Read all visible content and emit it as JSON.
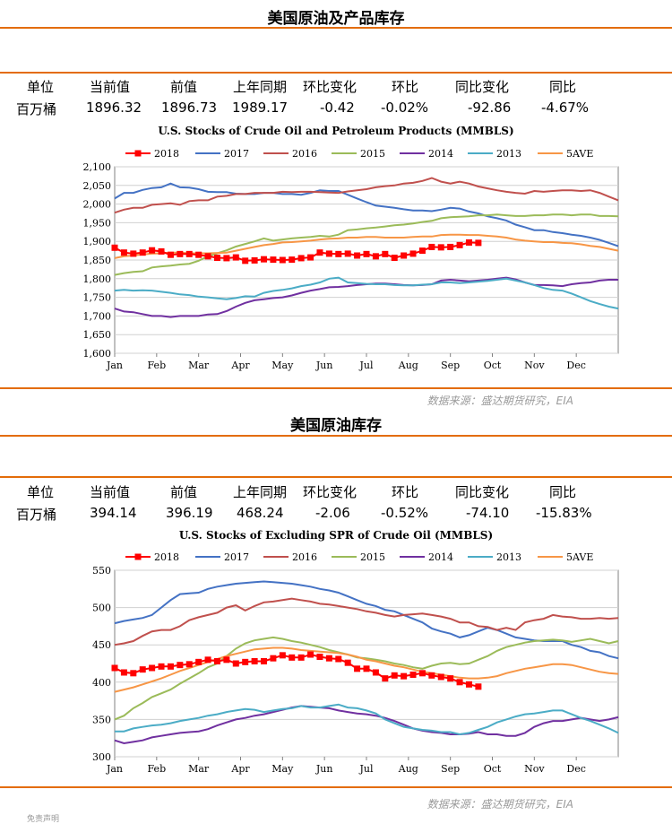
{
  "sections": [
    {
      "title": "美国原油及产品库存",
      "stats": {
        "headers": [
          "单位",
          "当前值",
          "前值",
          "上年同期",
          "环比变化",
          "环比",
          "同比变化",
          "同比"
        ],
        "values": [
          "百万桶",
          "1896.32",
          "1896.73",
          "1989.17",
          "-0.42",
          "-0.02%",
          "-92.86",
          "-4.67%"
        ]
      },
      "source": "数据来源：盛达期货研究，EIA"
    },
    {
      "title": "美国原油库存",
      "stats": {
        "headers": [
          "单位",
          "当前值",
          "前值",
          "上年同期",
          "环比变化",
          "环比",
          "同比变化",
          "同比"
        ],
        "values": [
          "百万桶",
          "394.14",
          "396.19",
          "468.24",
          "-2.06",
          "-0.52%",
          "-74.10",
          "-15.83%"
        ]
      },
      "source": "数据来源：盛达期货研究，EIA"
    }
  ],
  "footer_text": "免责声明",
  "colors": {
    "accent": "#e36c09",
    "s2018": "#ff0000",
    "s2017": "#4472c4",
    "s2016": "#c0504d",
    "s2015": "#9bbb59",
    "s2014": "#7030a0",
    "s2013": "#4bacc6",
    "s5ave": "#f79646"
  },
  "chart_data": [
    {
      "type": "line",
      "title": "U.S.  Stocks of Crude Oil and Petroleum Products  (MMBLS)",
      "ylim": [
        1600,
        2100
      ],
      "yticks": [
        "1,600",
        "1,650",
        "1,700",
        "1,750",
        "1,800",
        "1,850",
        "1,900",
        "1,950",
        "2,000",
        "2,050",
        "2,100"
      ],
      "x_tick_labels": [
        "Jan",
        "Feb",
        "Mar",
        "Apr",
        "May",
        "Jun",
        "Jul",
        "Aug",
        "Sep",
        "Oct",
        "Nov",
        "Dec"
      ],
      "legend": [
        "2018",
        "2017",
        "2016",
        "2015",
        "2014",
        "2013",
        "5AVE"
      ],
      "legend_position": "top",
      "series": [
        {
          "name": "2018",
          "color": "#ff0000",
          "marker": "square",
          "values": [
            1883,
            1870,
            1867,
            1870,
            1876,
            1873,
            1864,
            1866,
            1866,
            1864,
            1860,
            1856,
            1855,
            1857,
            1848,
            1849,
            1852,
            1851,
            1850,
            1851,
            1855,
            1857,
            1870,
            1867,
            1866,
            1867,
            1862,
            1866,
            1860,
            1866,
            1856,
            1862,
            1867,
            1875,
            1885,
            1884,
            1885,
            1890,
            1897,
            1896
          ]
        },
        {
          "name": "2017",
          "color": "#4472c4",
          "values": [
            2015,
            2030,
            2030,
            2038,
            2043,
            2045,
            2055,
            2045,
            2044,
            2040,
            2033,
            2032,
            2032,
            2028,
            2027,
            2027,
            2030,
            2030,
            2027,
            2027,
            2025,
            2030,
            2037,
            2035,
            2035,
            2025,
            2015,
            2005,
            1996,
            1993,
            1990,
            1986,
            1983,
            1983,
            1981,
            1985,
            1990,
            1988,
            1980,
            1975,
            1967,
            1962,
            1956,
            1945,
            1938,
            1930,
            1930,
            1925,
            1922,
            1918,
            1915,
            1910,
            1904,
            1896,
            1887
          ]
        },
        {
          "name": "2016",
          "color": "#c0504d",
          "values": [
            1977,
            1985,
            1990,
            1990,
            1998,
            2000,
            2002,
            1998,
            2008,
            2010,
            2010,
            2020,
            2022,
            2027,
            2027,
            2030,
            2030,
            2030,
            2033,
            2032,
            2033,
            2033,
            2032,
            2031,
            2030,
            2034,
            2037,
            2040,
            2045,
            2048,
            2050,
            2055,
            2057,
            2062,
            2070,
            2060,
            2055,
            2060,
            2055,
            2047,
            2042,
            2037,
            2033,
            2030,
            2028,
            2035,
            2033,
            2035,
            2037,
            2037,
            2035,
            2037,
            2030,
            2020,
            2010
          ]
        },
        {
          "name": "2015",
          "color": "#9bbb59",
          "values": [
            1810,
            1815,
            1818,
            1820,
            1830,
            1833,
            1835,
            1838,
            1840,
            1848,
            1860,
            1868,
            1876,
            1886,
            1893,
            1900,
            1908,
            1902,
            1905,
            1908,
            1910,
            1912,
            1915,
            1913,
            1918,
            1930,
            1932,
            1935,
            1937,
            1940,
            1943,
            1945,
            1948,
            1952,
            1955,
            1962,
            1965,
            1966,
            1967,
            1970,
            1970,
            1972,
            1970,
            1968,
            1968,
            1970,
            1970,
            1972,
            1972,
            1970,
            1972,
            1972,
            1968,
            1968,
            1967
          ]
        },
        {
          "name": "2014",
          "color": "#7030a0",
          "values": [
            1720,
            1712,
            1710,
            1705,
            1700,
            1700,
            1697,
            1700,
            1700,
            1700,
            1704,
            1705,
            1713,
            1725,
            1735,
            1742,
            1745,
            1748,
            1750,
            1755,
            1762,
            1768,
            1772,
            1777,
            1778,
            1780,
            1783,
            1785,
            1787,
            1787,
            1785,
            1783,
            1782,
            1783,
            1785,
            1795,
            1797,
            1795,
            1793,
            1795,
            1797,
            1800,
            1803,
            1798,
            1790,
            1783,
            1783,
            1782,
            1780,
            1785,
            1788,
            1790,
            1795,
            1797,
            1797
          ]
        },
        {
          "name": "2013",
          "color": "#4bacc6",
          "values": [
            1768,
            1770,
            1768,
            1769,
            1768,
            1765,
            1762,
            1758,
            1756,
            1752,
            1750,
            1747,
            1745,
            1748,
            1753,
            1752,
            1762,
            1767,
            1770,
            1774,
            1780,
            1784,
            1790,
            1800,
            1803,
            1790,
            1788,
            1786,
            1785,
            1785,
            1783,
            1782,
            1782,
            1784,
            1785,
            1790,
            1790,
            1788,
            1790,
            1792,
            1794,
            1797,
            1800,
            1795,
            1790,
            1783,
            1775,
            1770,
            1768,
            1760,
            1750,
            1740,
            1732,
            1725,
            1720
          ]
        },
        {
          "name": "5AVE",
          "color": "#f79646",
          "values": [
            1855,
            1860,
            1862,
            1865,
            1867,
            1868,
            1870,
            1870,
            1868,
            1868,
            1868,
            1869,
            1870,
            1875,
            1880,
            1885,
            1890,
            1893,
            1897,
            1898,
            1900,
            1902,
            1905,
            1907,
            1908,
            1910,
            1910,
            1912,
            1912,
            1910,
            1910,
            1910,
            1912,
            1913,
            1913,
            1917,
            1918,
            1918,
            1917,
            1917,
            1915,
            1913,
            1910,
            1905,
            1902,
            1900,
            1898,
            1898,
            1896,
            1895,
            1892,
            1888,
            1885,
            1880,
            1875
          ]
        }
      ]
    },
    {
      "type": "line",
      "title": "U.S.  Stocks of Excluding SPR of Crude Oil (MMBLS)",
      "ylim": [
        300,
        550
      ],
      "yticks": [
        "300",
        "350",
        "400",
        "450",
        "500",
        "550"
      ],
      "x_tick_labels": [
        "Jan",
        "Feb",
        "Mar",
        "Apr",
        "May",
        "Jun",
        "Jul",
        "Aug",
        "Sep",
        "Oct",
        "Nov",
        "Dec"
      ],
      "legend": [
        "2018",
        "2017",
        "2016",
        "2015",
        "2014",
        "2013",
        "5AVE"
      ],
      "legend_position": "top",
      "series": [
        {
          "name": "2018",
          "color": "#ff0000",
          "marker": "square",
          "values": [
            419,
            413,
            412,
            417,
            419,
            421,
            421,
            423,
            424,
            427,
            430,
            428,
            430,
            425,
            427,
            428,
            428,
            432,
            436,
            433,
            433,
            437,
            434,
            432,
            431,
            426,
            418,
            418,
            413,
            405,
            409,
            408,
            410,
            412,
            409,
            407,
            405,
            400,
            397,
            394
          ]
        },
        {
          "name": "2017",
          "color": "#4472c4",
          "values": [
            479,
            482,
            484,
            486,
            490,
            500,
            510,
            518,
            519,
            520,
            525,
            528,
            530,
            532,
            533,
            534,
            535,
            534,
            533,
            532,
            530,
            528,
            525,
            523,
            520,
            515,
            510,
            505,
            502,
            497,
            495,
            490,
            485,
            480,
            472,
            468,
            465,
            460,
            463,
            468,
            473,
            470,
            465,
            460,
            458,
            456,
            455,
            455,
            455,
            450,
            447,
            442,
            440,
            435,
            432
          ]
        },
        {
          "name": "2016",
          "color": "#c0504d",
          "values": [
            450,
            452,
            455,
            462,
            468,
            470,
            470,
            475,
            483,
            487,
            490,
            493,
            500,
            503,
            496,
            502,
            507,
            508,
            510,
            512,
            510,
            508,
            505,
            504,
            502,
            500,
            498,
            495,
            493,
            490,
            488,
            490,
            491,
            492,
            490,
            488,
            485,
            480,
            480,
            475,
            474,
            470,
            473,
            470,
            480,
            483,
            485,
            490,
            488,
            487,
            485,
            485,
            486,
            485,
            486
          ]
        },
        {
          "name": "2015",
          "color": "#9bbb59",
          "values": [
            350,
            355,
            365,
            372,
            380,
            385,
            390,
            398,
            405,
            412,
            420,
            425,
            435,
            445,
            452,
            456,
            458,
            460,
            458,
            455,
            453,
            450,
            447,
            443,
            440,
            437,
            433,
            432,
            430,
            428,
            425,
            423,
            420,
            418,
            422,
            425,
            426,
            424,
            425,
            430,
            435,
            442,
            447,
            450,
            453,
            455,
            456,
            457,
            456,
            454,
            456,
            458,
            455,
            452,
            455
          ]
        },
        {
          "name": "2014",
          "color": "#7030a0",
          "values": [
            322,
            318,
            320,
            322,
            326,
            328,
            330,
            332,
            333,
            334,
            337,
            342,
            346,
            350,
            352,
            355,
            357,
            360,
            363,
            366,
            368,
            367,
            366,
            365,
            362,
            360,
            358,
            357,
            355,
            352,
            348,
            343,
            338,
            335,
            333,
            332,
            330,
            330,
            331,
            333,
            330,
            330,
            328,
            328,
            332,
            340,
            345,
            348,
            348,
            350,
            352,
            350,
            348,
            350,
            353
          ]
        },
        {
          "name": "2013",
          "color": "#4bacc6",
          "values": [
            334,
            334,
            338,
            340,
            342,
            343,
            345,
            348,
            350,
            352,
            355,
            357,
            360,
            362,
            364,
            363,
            360,
            362,
            364,
            365,
            368,
            366,
            366,
            368,
            370,
            366,
            365,
            362,
            358,
            350,
            345,
            340,
            338,
            336,
            335,
            333,
            333,
            330,
            332,
            336,
            340,
            346,
            350,
            354,
            357,
            358,
            360,
            362,
            362,
            357,
            352,
            348,
            343,
            338,
            332
          ]
        },
        {
          "name": "5AVE",
          "color": "#f79646",
          "values": [
            387,
            390,
            393,
            397,
            401,
            405,
            410,
            415,
            419,
            423,
            427,
            431,
            435,
            438,
            441,
            444,
            445,
            446,
            446,
            445,
            443,
            442,
            441,
            440,
            439,
            437,
            434,
            430,
            428,
            425,
            422,
            420,
            417,
            414,
            412,
            410,
            408,
            406,
            405,
            405,
            406,
            408,
            412,
            415,
            418,
            420,
            422,
            424,
            424,
            423,
            420,
            417,
            414,
            412,
            411
          ]
        }
      ]
    }
  ]
}
